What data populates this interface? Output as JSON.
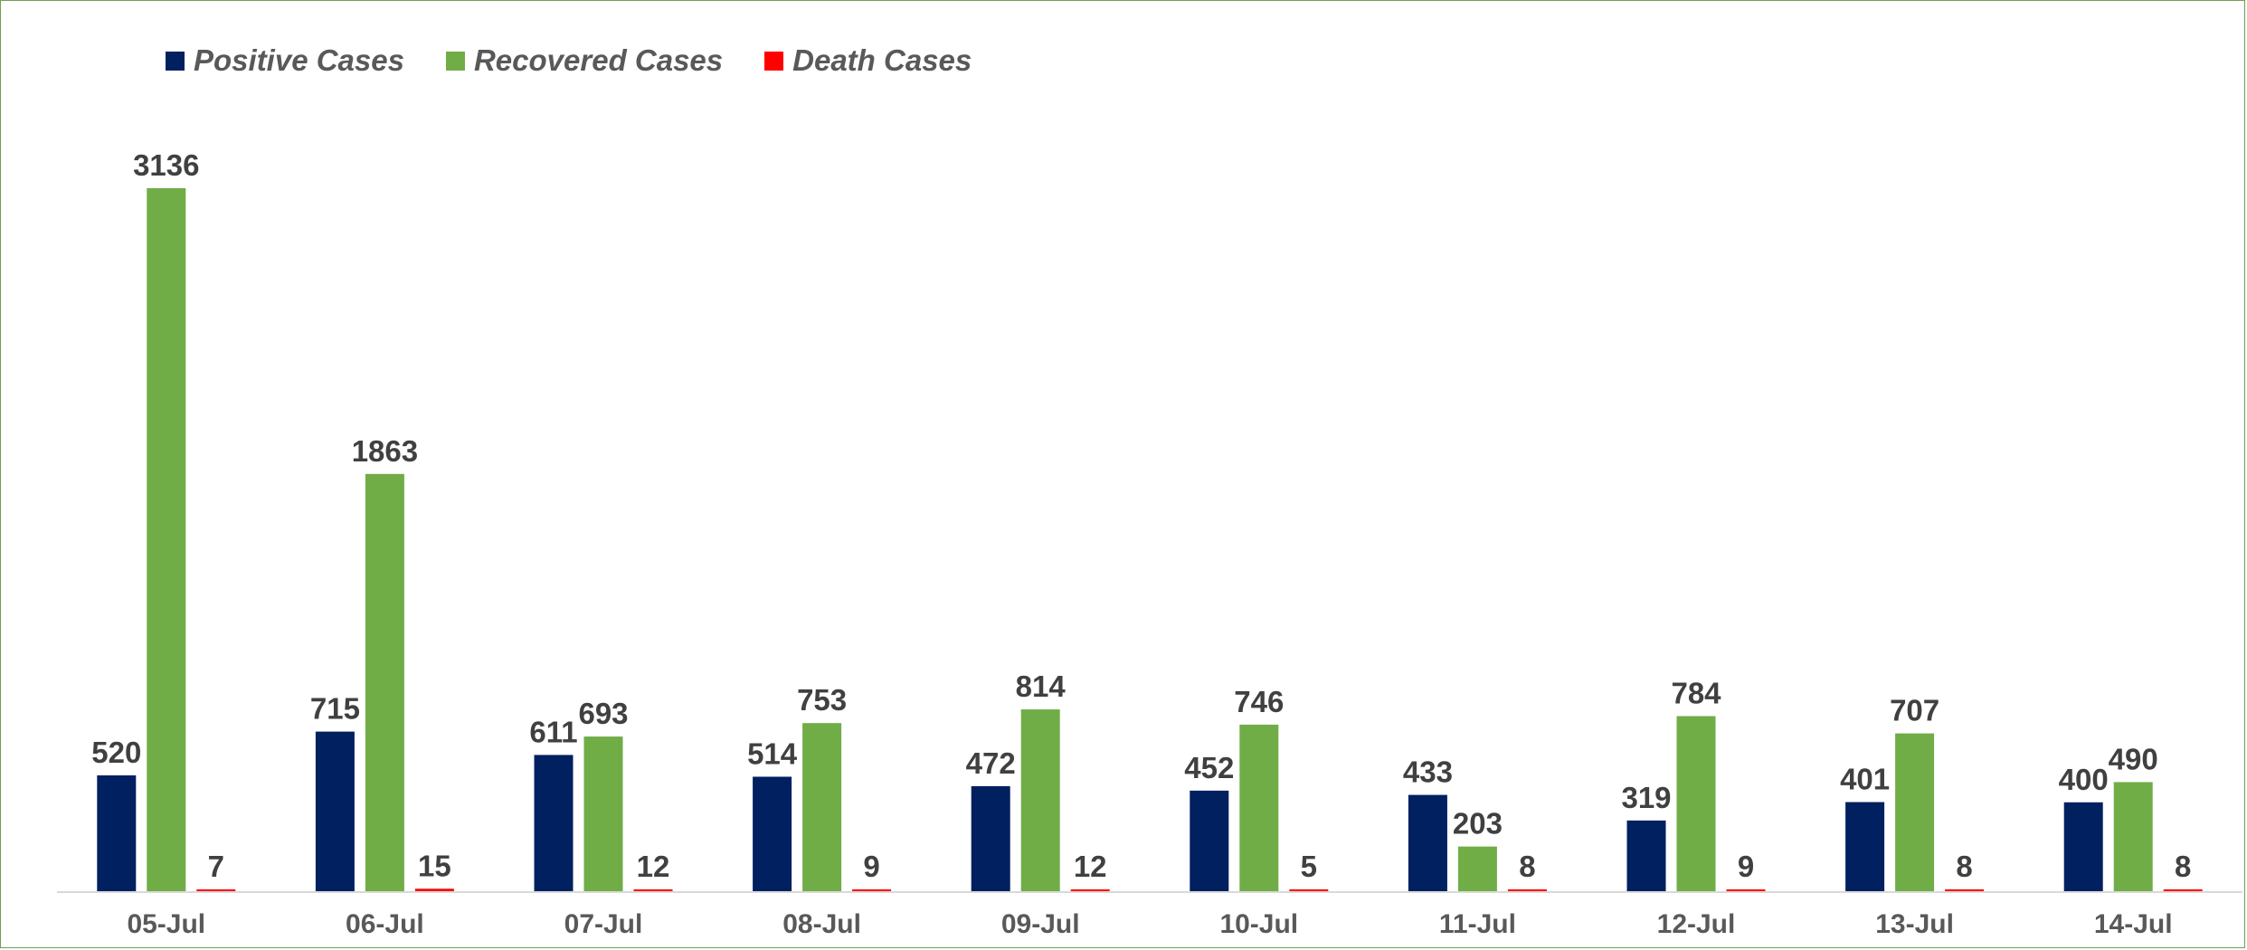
{
  "chart_data": {
    "type": "bar",
    "categories": [
      "05-Jul",
      "06-Jul",
      "07-Jul",
      "08-Jul",
      "09-Jul",
      "10-Jul",
      "11-Jul",
      "12-Jul",
      "13-Jul",
      "14-Jul"
    ],
    "series": [
      {
        "name": "Positive Cases",
        "color": "#002060",
        "values": [
          520,
          715,
          611,
          514,
          472,
          452,
          433,
          319,
          401,
          400
        ]
      },
      {
        "name": "Recovered Cases",
        "color": "#70ad47",
        "values": [
          3136,
          1863,
          693,
          753,
          814,
          746,
          203,
          784,
          707,
          490
        ]
      },
      {
        "name": "Death Cases",
        "color": "#ff0000",
        "values": [
          7,
          15,
          12,
          9,
          12,
          5,
          8,
          9,
          8,
          8
        ]
      }
    ],
    "ylim": [
      0,
      3136
    ],
    "legend_position": "top-left",
    "grid": false,
    "data_labels": true
  }
}
